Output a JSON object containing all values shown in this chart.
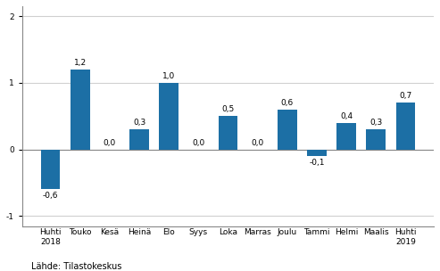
{
  "categories": [
    "Huhti\n2018",
    "Touko",
    "Kesä",
    "Heinä",
    "Elo",
    "Syys",
    "Loka",
    "Marras",
    "Joulu",
    "Tammi",
    "Helmi",
    "Maalis",
    "Huhti\n2019"
  ],
  "values": [
    -0.6,
    1.2,
    0.0,
    0.3,
    1.0,
    0.0,
    0.5,
    0.0,
    0.6,
    -0.1,
    0.4,
    0.3,
    0.7
  ],
  "bar_color": "#1C6FA5",
  "ylim": [
    -1.15,
    2.15
  ],
  "yticks": [
    -1,
    0,
    1,
    2
  ],
  "source_text": "Lähde: Tilastokeskus",
  "label_fontsize": 6.5,
  "tick_fontsize": 6.5,
  "source_fontsize": 7.0,
  "background_color": "#ffffff",
  "grid_color": "#d0d0d0"
}
